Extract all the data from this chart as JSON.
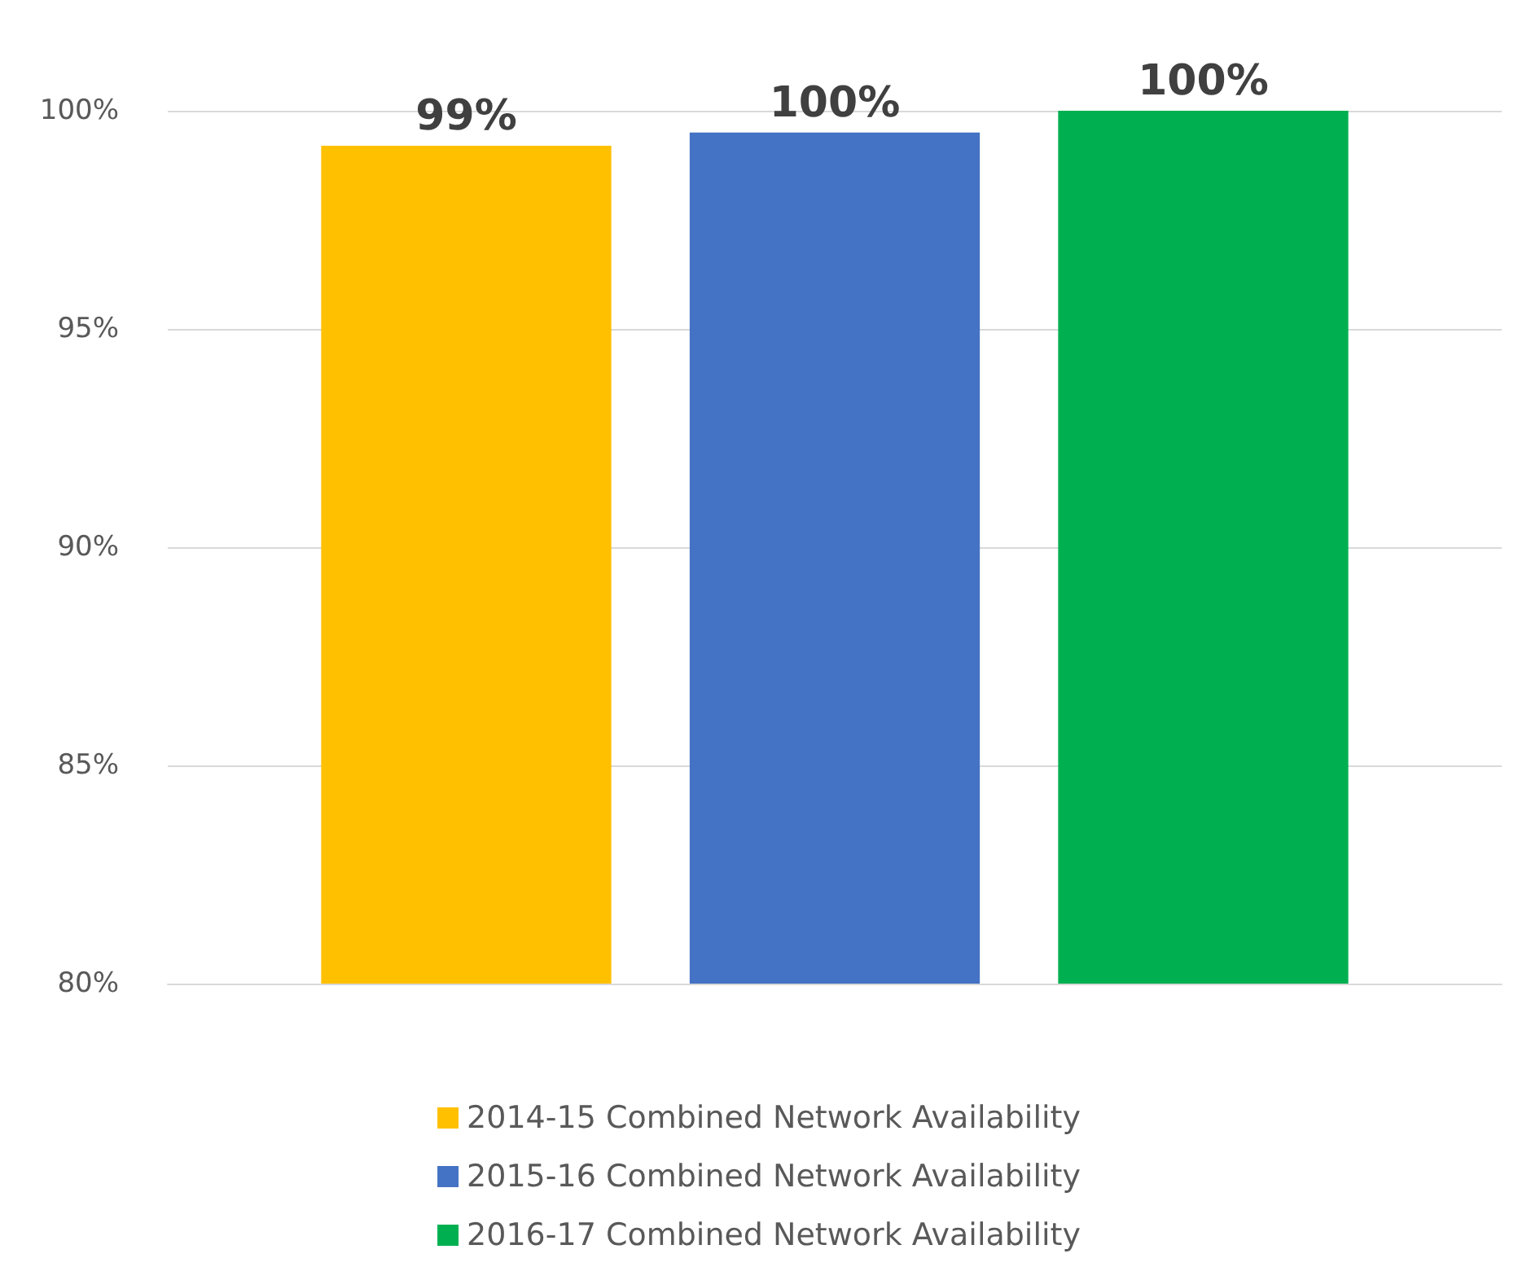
{
  "chart_data": {
    "type": "bar",
    "categories": [
      null
    ],
    "series": [
      {
        "name": "2014-15 Combined Network Availability",
        "color": "#ffc000",
        "values": [
          99.2
        ],
        "value_labels": [
          "99%"
        ]
      },
      {
        "name": "2015-16 Combined Network Availability",
        "color": "#4472c4",
        "values": [
          99.5
        ],
        "value_labels": [
          "100%"
        ]
      },
      {
        "name": "2016-17 Combined Network Availability",
        "color": "#00b050",
        "values": [
          100
        ],
        "value_labels": [
          "100%"
        ]
      }
    ],
    "ylim": [
      80,
      100
    ],
    "yticks": [
      {
        "value": 80,
        "label": "80%"
      },
      {
        "value": 85,
        "label": "85%"
      },
      {
        "value": 90,
        "label": "90%"
      },
      {
        "value": 95,
        "label": "95%"
      },
      {
        "value": 100,
        "label": "100%"
      }
    ],
    "grid": "y",
    "legend": "bottom"
  }
}
